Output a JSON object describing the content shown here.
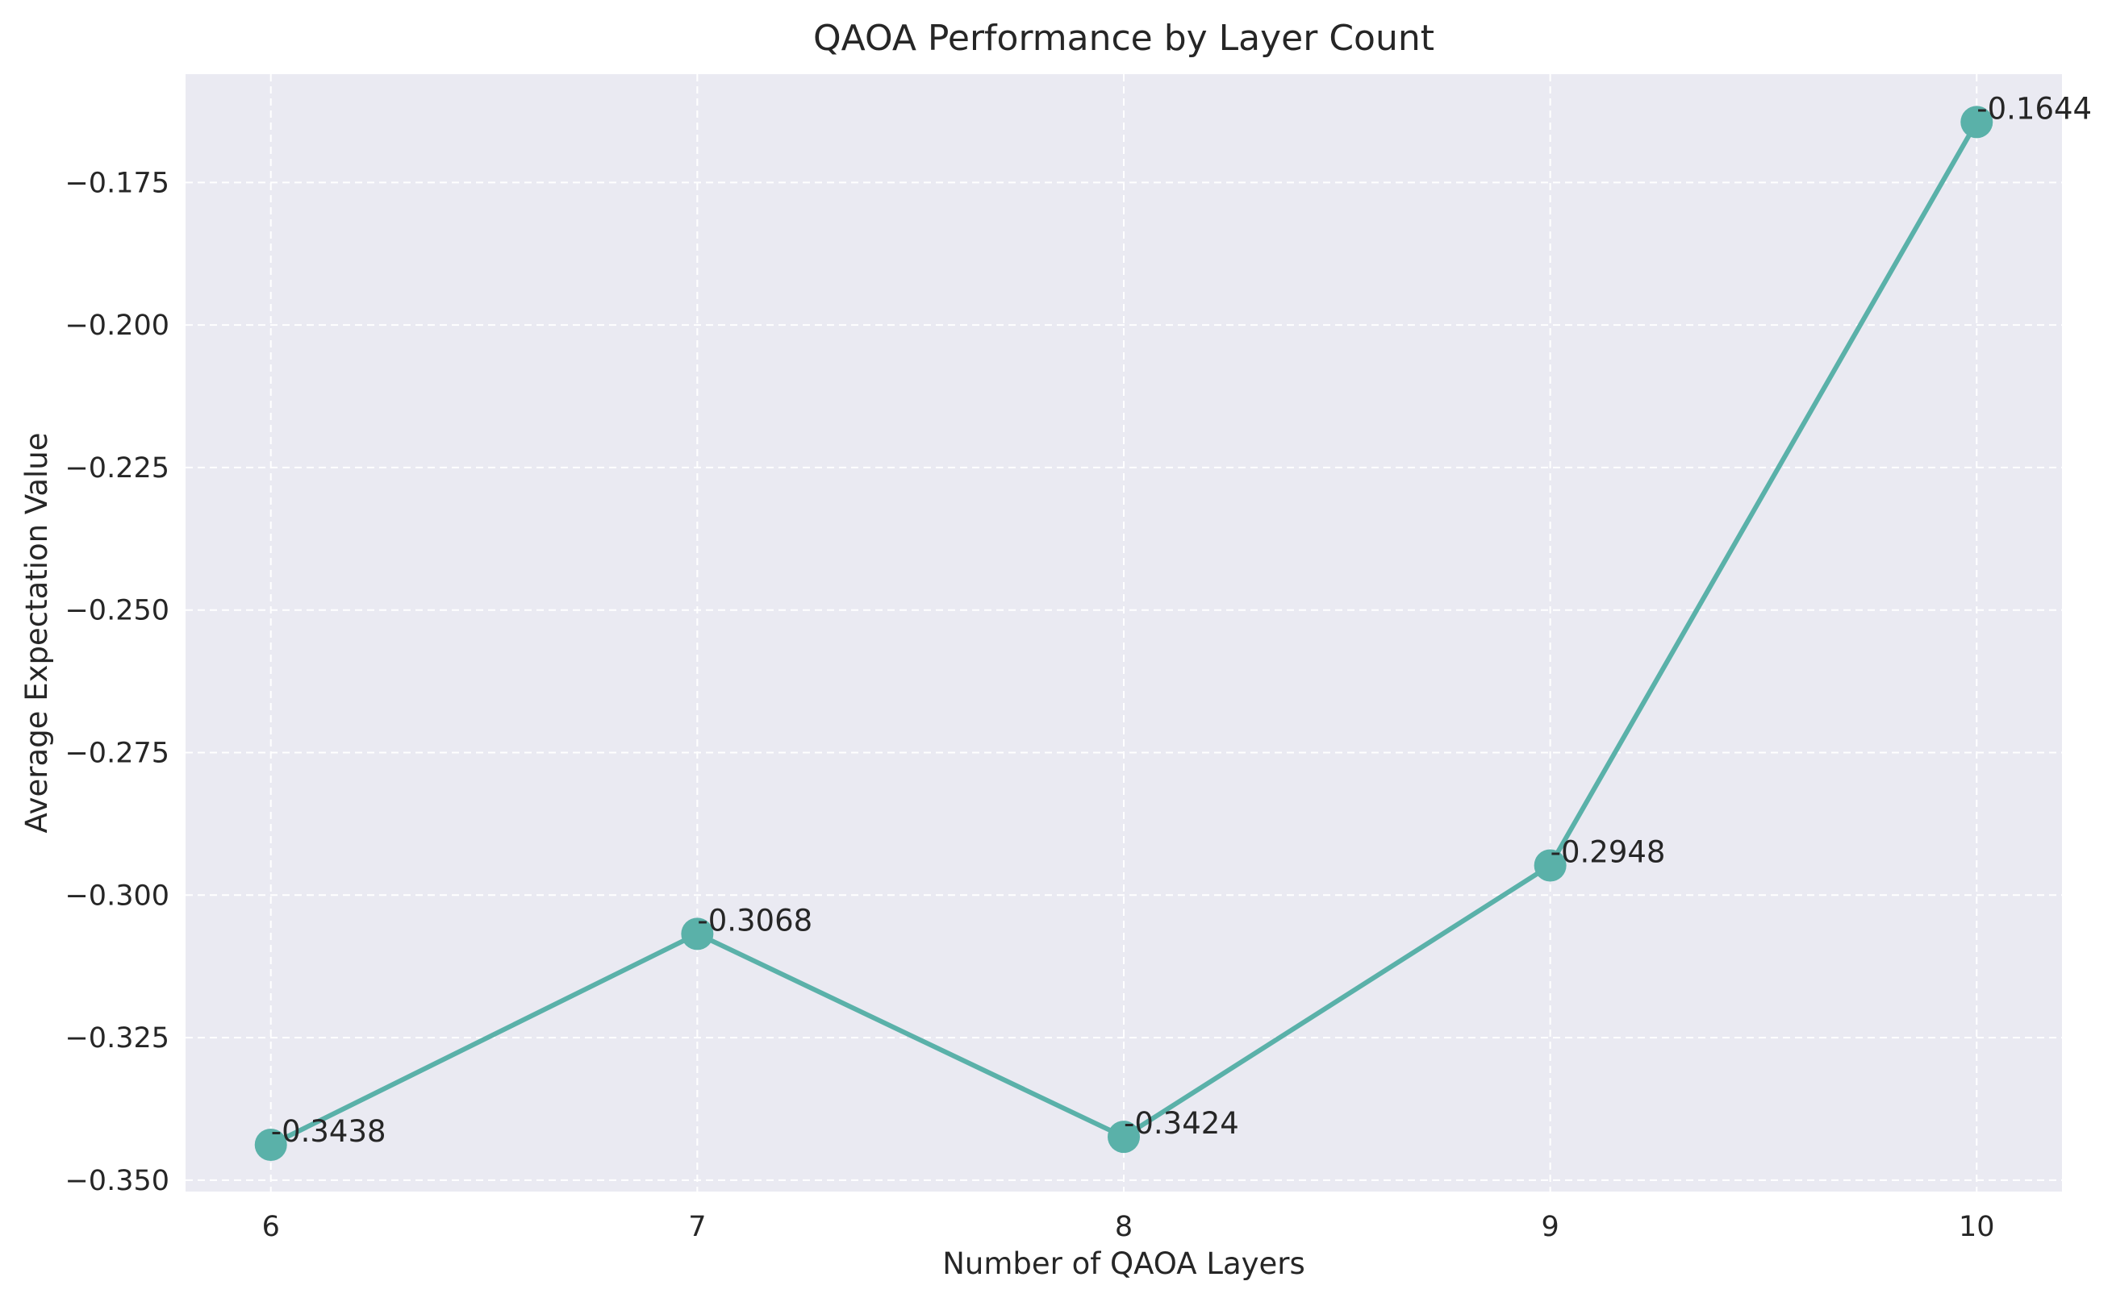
{
  "chart_data": {
    "type": "line",
    "title": "QAOA Performance by Layer Count",
    "xlabel": "Number of QAOA Layers",
    "ylabel": "Average Expectation Value",
    "x": [
      6,
      7,
      8,
      9,
      10
    ],
    "x_ticks": [
      "6",
      "7",
      "8",
      "9",
      "10"
    ],
    "y_ticks": [
      "−0.350",
      "−0.325",
      "−0.300",
      "−0.275",
      "−0.250",
      "−0.225",
      "−0.200",
      "−0.175"
    ],
    "y_tick_values": [
      -0.35,
      -0.325,
      -0.3,
      -0.275,
      -0.25,
      -0.225,
      -0.2,
      -0.175
    ],
    "series": [
      {
        "values": [
          -0.3438,
          -0.3068,
          -0.3424,
          -0.2948,
          -0.1644
        ],
        "labels": [
          "-0.3438",
          "-0.3068",
          "-0.3424",
          "-0.2948",
          "-0.1644"
        ],
        "color": "#5ab1a9",
        "marker": "circle"
      }
    ],
    "xlim": [
      5.8,
      10.2
    ],
    "ylim": [
      -0.352,
      -0.156
    ],
    "grid": true,
    "grid_style": "dashed",
    "background_color": "#eaeaf2",
    "legend": "none"
  }
}
